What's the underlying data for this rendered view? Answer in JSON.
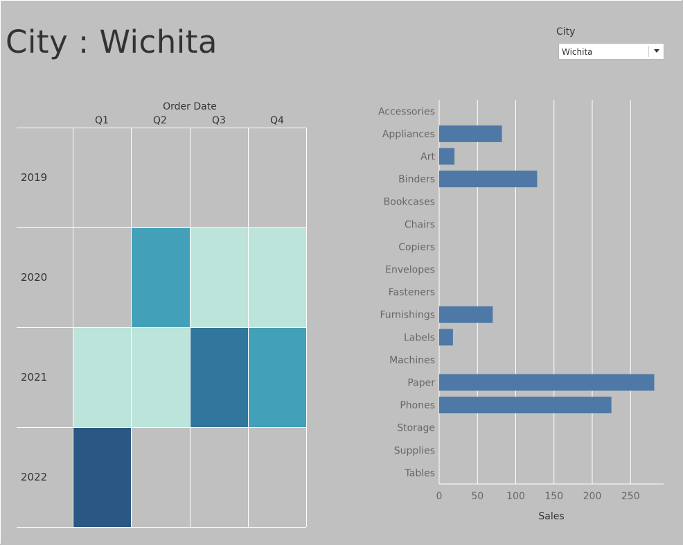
{
  "title": "City : Wichita",
  "filter": {
    "label": "City",
    "value": "Wichita"
  },
  "heatmap": {
    "column_group_title": "Order Date",
    "columns": [
      "Q1",
      "Q2",
      "Q3",
      "Q4"
    ],
    "rows": [
      "2019",
      "2020",
      "2021",
      "2022"
    ]
  },
  "chart_data": [
    {
      "type": "heatmap",
      "title": "",
      "xlabel": "Order Date",
      "ylabel": "",
      "x": [
        "Q1",
        "Q2",
        "Q3",
        "Q4"
      ],
      "y": [
        "2019",
        "2020",
        "2021",
        "2022"
      ],
      "cells": [
        [
          null,
          null,
          null,
          null
        ],
        [
          null,
          "medium",
          "low",
          "low"
        ],
        [
          "low",
          "low",
          "high",
          "medium"
        ],
        [
          "highest",
          null,
          null,
          null
        ]
      ],
      "colors": {
        "low": "#bce4da",
        "medium": "#43a0b9",
        "high": "#31769d",
        "highest": "#2a5783",
        "empty": "#c0c0c0"
      },
      "grid": true
    },
    {
      "type": "bar",
      "orientation": "horizontal",
      "title": "",
      "xlabel": "Sales",
      "ylabel": "",
      "categories": [
        "Accessories",
        "Appliances",
        "Art",
        "Binders",
        "Bookcases",
        "Chairs",
        "Copiers",
        "Envelopes",
        "Fasteners",
        "Furnishings",
        "Labels",
        "Machines",
        "Paper",
        "Phones",
        "Storage",
        "Supplies",
        "Tables"
      ],
      "values": [
        0,
        82,
        20,
        128,
        0,
        0,
        0,
        0,
        0,
        70,
        18,
        0,
        281,
        225,
        0,
        0,
        0
      ],
      "xlim": [
        0,
        295
      ],
      "xticks": [
        0,
        50,
        100,
        150,
        200,
        250
      ],
      "bar_color": "#4e79a7",
      "grid": true
    }
  ]
}
